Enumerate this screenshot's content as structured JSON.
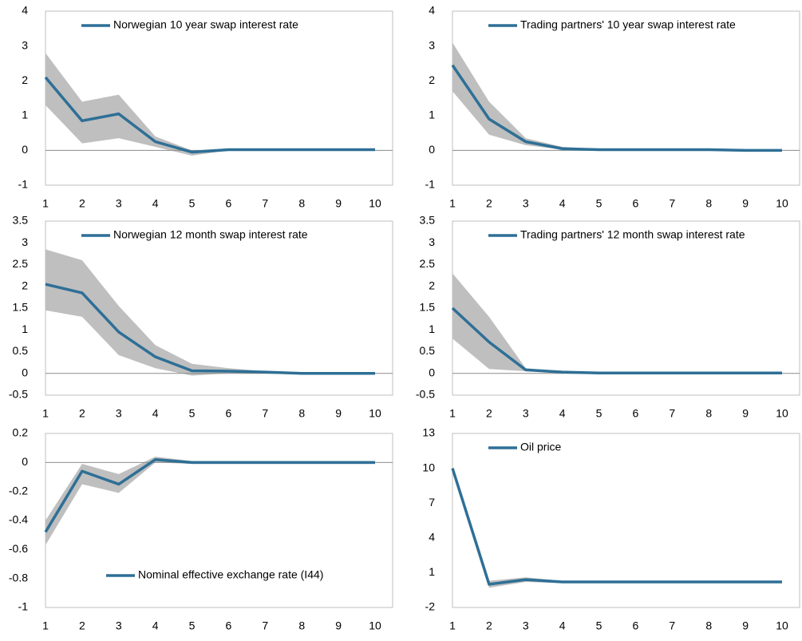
{
  "chart_data": [
    {
      "type": "line",
      "x": [
        1,
        2,
        3,
        4,
        5,
        6,
        7,
        8,
        9,
        10
      ],
      "xlim": [
        1,
        10
      ],
      "xticks": [
        1,
        2,
        3,
        4,
        5,
        6,
        7,
        8,
        9,
        10
      ],
      "ylim": [
        -1,
        4
      ],
      "yticks": [
        -1,
        0,
        1,
        2,
        3,
        4
      ],
      "legend": "top-left",
      "series": [
        {
          "name": "Norwegian 10 year swap interest rate",
          "color": "#2e6f96",
          "values": [
            2.1,
            0.85,
            1.05,
            0.25,
            -0.05,
            0.02,
            0.02,
            0.02,
            0.02,
            0.02
          ]
        }
      ],
      "band": {
        "color": "#bfbfbf",
        "upper": [
          2.8,
          1.4,
          1.6,
          0.4,
          0.0,
          0.05,
          0.04,
          0.04,
          0.04,
          0.04
        ],
        "lower": [
          1.3,
          0.2,
          0.35,
          0.1,
          -0.15,
          0.0,
          0.0,
          0.0,
          0.0,
          0.0
        ]
      }
    },
    {
      "type": "line",
      "x": [
        1,
        2,
        3,
        4,
        5,
        6,
        7,
        8,
        9,
        10
      ],
      "xlim": [
        1,
        10
      ],
      "xticks": [
        1,
        2,
        3,
        4,
        5,
        6,
        7,
        8,
        9,
        10
      ],
      "ylim": [
        -1,
        4
      ],
      "yticks": [
        -1,
        0,
        1,
        2,
        3,
        4
      ],
      "legend": "top-left",
      "series": [
        {
          "name": "Trading partners' 10 year swap interest rate",
          "color": "#2e6f96",
          "values": [
            2.45,
            0.9,
            0.25,
            0.05,
            0.02,
            0.02,
            0.02,
            0.02,
            0.0,
            0.0
          ]
        }
      ],
      "band": {
        "color": "#bfbfbf",
        "upper": [
          3.1,
          1.4,
          0.35,
          0.1,
          0.04,
          0.04,
          0.04,
          0.04,
          0.02,
          0.02
        ],
        "lower": [
          1.7,
          0.45,
          0.15,
          0.02,
          0.0,
          0.0,
          0.0,
          0.0,
          -0.02,
          -0.02
        ]
      }
    },
    {
      "type": "line",
      "x": [
        1,
        2,
        3,
        4,
        5,
        6,
        7,
        8,
        9,
        10
      ],
      "xlim": [
        1,
        10
      ],
      "xticks": [
        1,
        2,
        3,
        4,
        5,
        6,
        7,
        8,
        9,
        10
      ],
      "ylim": [
        -0.5,
        3.5
      ],
      "yticks": [
        -0.5,
        0,
        0.5,
        1,
        1.5,
        2,
        2.5,
        3,
        3.5
      ],
      "legend": "top-left",
      "series": [
        {
          "name": "Norwegian 12 month swap interest rate",
          "color": "#2e6f96",
          "values": [
            2.05,
            1.85,
            0.95,
            0.38,
            0.06,
            0.05,
            0.03,
            0.0,
            0.0,
            0.0
          ]
        }
      ],
      "band": {
        "color": "#bfbfbf",
        "upper": [
          2.85,
          2.6,
          1.55,
          0.65,
          0.22,
          0.12,
          0.05,
          0.02,
          0.02,
          0.02
        ],
        "lower": [
          1.45,
          1.3,
          0.42,
          0.12,
          -0.05,
          0.0,
          0.0,
          -0.02,
          -0.02,
          -0.02
        ]
      }
    },
    {
      "type": "line",
      "x": [
        1,
        2,
        3,
        4,
        5,
        6,
        7,
        8,
        9,
        10
      ],
      "xlim": [
        1,
        10
      ],
      "xticks": [
        1,
        2,
        3,
        4,
        5,
        6,
        7,
        8,
        9,
        10
      ],
      "ylim": [
        -0.5,
        3.5
      ],
      "yticks": [
        -0.5,
        0,
        0.5,
        1,
        1.5,
        2,
        2.5,
        3,
        3.5
      ],
      "legend": "top-left",
      "series": [
        {
          "name": "Trading partners' 12 month swap interest rate",
          "color": "#2e6f96",
          "values": [
            1.5,
            0.72,
            0.08,
            0.03,
            0.01,
            0.01,
            0.01,
            0.01,
            0.01,
            0.01
          ]
        }
      ],
      "band": {
        "color": "#bfbfbf",
        "upper": [
          2.3,
          1.3,
          0.12,
          0.05,
          0.03,
          0.03,
          0.03,
          0.03,
          0.03,
          0.03
        ],
        "lower": [
          0.8,
          0.1,
          0.05,
          0.01,
          0.0,
          0.0,
          0.0,
          0.0,
          0.0,
          0.0
        ]
      }
    },
    {
      "type": "line",
      "x": [
        1,
        2,
        3,
        4,
        5,
        6,
        7,
        8,
        9,
        10
      ],
      "xlim": [
        1,
        10
      ],
      "xticks": [
        1,
        2,
        3,
        4,
        5,
        6,
        7,
        8,
        9,
        10
      ],
      "ylim": [
        -1,
        0.2
      ],
      "yticks": [
        -1,
        -0.8,
        -0.6,
        -0.4,
        -0.2,
        0,
        0.2
      ],
      "legend": "bottom-left",
      "series": [
        {
          "name": "Nominal effective exchange rate (I44)",
          "color": "#2e6f96",
          "values": [
            -0.48,
            -0.06,
            -0.15,
            0.02,
            0.0,
            0.0,
            0.0,
            0.0,
            0.0,
            0.0
          ]
        }
      ],
      "band": {
        "color": "#bfbfbf",
        "upper": [
          -0.4,
          -0.01,
          -0.08,
          0.04,
          0.01,
          0.01,
          0.01,
          0.01,
          0.01,
          0.01
        ],
        "lower": [
          -0.57,
          -0.15,
          -0.21,
          0.0,
          -0.01,
          -0.01,
          -0.01,
          -0.01,
          -0.01,
          -0.01
        ]
      }
    },
    {
      "type": "line",
      "x": [
        1,
        2,
        3,
        4,
        5,
        6,
        7,
        8,
        9,
        10
      ],
      "xlim": [
        1,
        10
      ],
      "xticks": [
        1,
        2,
        3,
        4,
        5,
        6,
        7,
        8,
        9,
        10
      ],
      "ylim": [
        -2,
        13
      ],
      "yticks": [
        -2,
        1,
        4,
        7,
        10,
        13
      ],
      "legend": "top-left",
      "series": [
        {
          "name": "Oil price",
          "color": "#2e6f96",
          "values": [
            10,
            0.0,
            0.4,
            0.2,
            0.2,
            0.2,
            0.2,
            0.2,
            0.2,
            0.2
          ]
        }
      ],
      "band": {
        "color": "#bfbfbf",
        "upper": [
          10.1,
          0.3,
          0.6,
          0.3,
          0.3,
          0.3,
          0.3,
          0.3,
          0.3,
          0.3
        ],
        "lower": [
          9.9,
          -0.3,
          0.2,
          0.1,
          0.1,
          0.1,
          0.1,
          0.1,
          0.1,
          0.1
        ]
      }
    }
  ]
}
